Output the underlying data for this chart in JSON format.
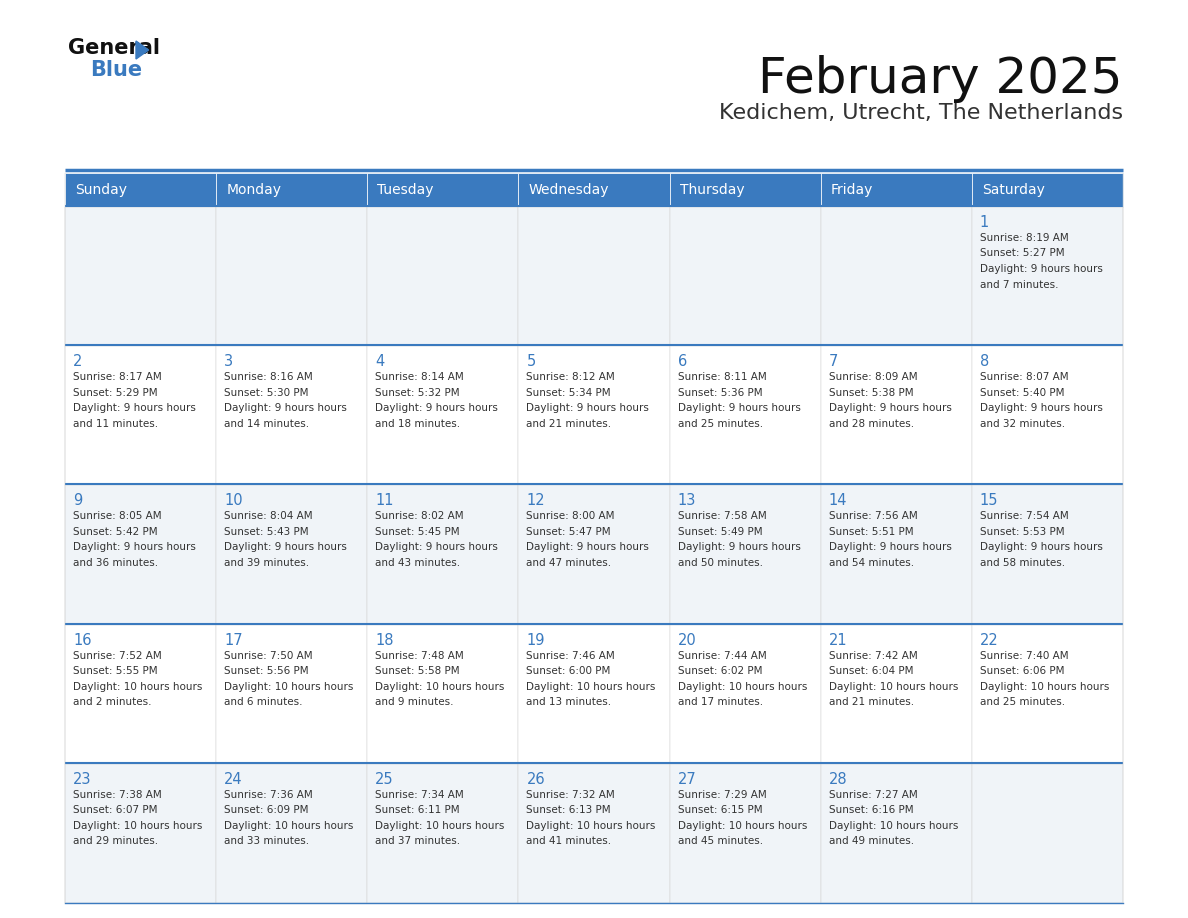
{
  "title": "February 2025",
  "subtitle": "Kedichem, Utrecht, The Netherlands",
  "header_color": "#3a7abf",
  "header_text_color": "#ffffff",
  "day_names": [
    "Sunday",
    "Monday",
    "Tuesday",
    "Wednesday",
    "Thursday",
    "Friday",
    "Saturday"
  ],
  "cell_bg_row0": "#f0f4f8",
  "cell_bg_row1": "#ffffff",
  "border_color": "#3a7abf",
  "text_color": "#333333",
  "number_color": "#3a7abf",
  "separator_color": "#3a7abf",
  "title_color": "#111111",
  "subtitle_color": "#333333",
  "logo_general_color": "#111111",
  "logo_blue_color": "#3a7abf",
  "logo_triangle_color": "#3a7abf",
  "calendar": [
    [
      null,
      null,
      null,
      null,
      null,
      null,
      {
        "day": 1,
        "sunrise": "8:19 AM",
        "sunset": "5:27 PM",
        "daylight": "9 hours and 7 minutes"
      }
    ],
    [
      {
        "day": 2,
        "sunrise": "8:17 AM",
        "sunset": "5:29 PM",
        "daylight": "9 hours and 11 minutes"
      },
      {
        "day": 3,
        "sunrise": "8:16 AM",
        "sunset": "5:30 PM",
        "daylight": "9 hours and 14 minutes"
      },
      {
        "day": 4,
        "sunrise": "8:14 AM",
        "sunset": "5:32 PM",
        "daylight": "9 hours and 18 minutes"
      },
      {
        "day": 5,
        "sunrise": "8:12 AM",
        "sunset": "5:34 PM",
        "daylight": "9 hours and 21 minutes"
      },
      {
        "day": 6,
        "sunrise": "8:11 AM",
        "sunset": "5:36 PM",
        "daylight": "9 hours and 25 minutes"
      },
      {
        "day": 7,
        "sunrise": "8:09 AM",
        "sunset": "5:38 PM",
        "daylight": "9 hours and 28 minutes"
      },
      {
        "day": 8,
        "sunrise": "8:07 AM",
        "sunset": "5:40 PM",
        "daylight": "9 hours and 32 minutes"
      }
    ],
    [
      {
        "day": 9,
        "sunrise": "8:05 AM",
        "sunset": "5:42 PM",
        "daylight": "9 hours and 36 minutes"
      },
      {
        "day": 10,
        "sunrise": "8:04 AM",
        "sunset": "5:43 PM",
        "daylight": "9 hours and 39 minutes"
      },
      {
        "day": 11,
        "sunrise": "8:02 AM",
        "sunset": "5:45 PM",
        "daylight": "9 hours and 43 minutes"
      },
      {
        "day": 12,
        "sunrise": "8:00 AM",
        "sunset": "5:47 PM",
        "daylight": "9 hours and 47 minutes"
      },
      {
        "day": 13,
        "sunrise": "7:58 AM",
        "sunset": "5:49 PM",
        "daylight": "9 hours and 50 minutes"
      },
      {
        "day": 14,
        "sunrise": "7:56 AM",
        "sunset": "5:51 PM",
        "daylight": "9 hours and 54 minutes"
      },
      {
        "day": 15,
        "sunrise": "7:54 AM",
        "sunset": "5:53 PM",
        "daylight": "9 hours and 58 minutes"
      }
    ],
    [
      {
        "day": 16,
        "sunrise": "7:52 AM",
        "sunset": "5:55 PM",
        "daylight": "10 hours and 2 minutes"
      },
      {
        "day": 17,
        "sunrise": "7:50 AM",
        "sunset": "5:56 PM",
        "daylight": "10 hours and 6 minutes"
      },
      {
        "day": 18,
        "sunrise": "7:48 AM",
        "sunset": "5:58 PM",
        "daylight": "10 hours and 9 minutes"
      },
      {
        "day": 19,
        "sunrise": "7:46 AM",
        "sunset": "6:00 PM",
        "daylight": "10 hours and 13 minutes"
      },
      {
        "day": 20,
        "sunrise": "7:44 AM",
        "sunset": "6:02 PM",
        "daylight": "10 hours and 17 minutes"
      },
      {
        "day": 21,
        "sunrise": "7:42 AM",
        "sunset": "6:04 PM",
        "daylight": "10 hours and 21 minutes"
      },
      {
        "day": 22,
        "sunrise": "7:40 AM",
        "sunset": "6:06 PM",
        "daylight": "10 hours and 25 minutes"
      }
    ],
    [
      {
        "day": 23,
        "sunrise": "7:38 AM",
        "sunset": "6:07 PM",
        "daylight": "10 hours and 29 minutes"
      },
      {
        "day": 24,
        "sunrise": "7:36 AM",
        "sunset": "6:09 PM",
        "daylight": "10 hours and 33 minutes"
      },
      {
        "day": 25,
        "sunrise": "7:34 AM",
        "sunset": "6:11 PM",
        "daylight": "10 hours and 37 minutes"
      },
      {
        "day": 26,
        "sunrise": "7:32 AM",
        "sunset": "6:13 PM",
        "daylight": "10 hours and 41 minutes"
      },
      {
        "day": 27,
        "sunrise": "7:29 AM",
        "sunset": "6:15 PM",
        "daylight": "10 hours and 45 minutes"
      },
      {
        "day": 28,
        "sunrise": "7:27 AM",
        "sunset": "6:16 PM",
        "daylight": "10 hours and 49 minutes"
      },
      null
    ]
  ]
}
